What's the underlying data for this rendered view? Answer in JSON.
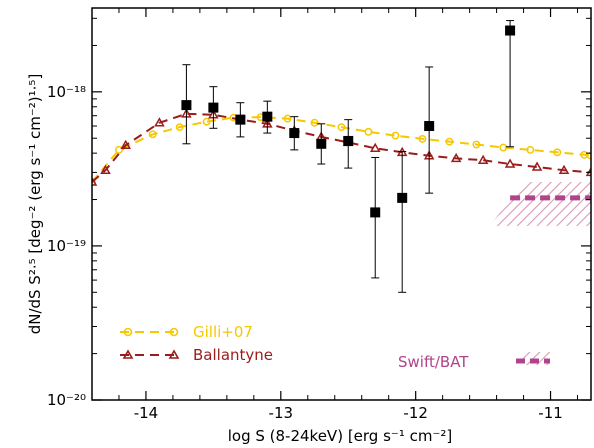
{
  "chart_data": {
    "type": "line",
    "xlabel": "log S (8-24keV) [erg s⁻¹ cm⁻²]",
    "ylabel": "dN/dS S²·⁵ [deg⁻² (erg s⁻¹ cm⁻²)¹·⁵]",
    "xlim": [
      -14.4,
      -10.7
    ],
    "ylim": [
      1e-20,
      3.5e-18
    ],
    "yscale": "log",
    "x_ticks": [
      {
        "value": -14,
        "label": "-14"
      },
      {
        "value": -13,
        "label": "-13"
      },
      {
        "value": -12,
        "label": "-12"
      },
      {
        "value": -11,
        "label": "-11"
      }
    ],
    "y_ticks": [
      {
        "value": 1e-20,
        "label": "10⁻²⁰"
      },
      {
        "value": 1e-19,
        "label": "10⁻¹⁹"
      },
      {
        "value": 1e-18,
        "label": "10⁻¹⁸"
      }
    ],
    "series": [
      {
        "name": "Gilli+07",
        "style": "dashed",
        "marker": "circle",
        "color": "#f5c800",
        "x": [
          -14.4,
          -14.2,
          -13.95,
          -13.75,
          -13.55,
          -13.35,
          -13.15,
          -12.95,
          -12.75,
          -12.55,
          -12.35,
          -12.15,
          -11.95,
          -11.75,
          -11.55,
          -11.35,
          -11.15,
          -10.95,
          -10.75,
          -10.7
        ],
        "y": [
          2.6e-19,
          4.2e-19,
          5.3e-19,
          5.9e-19,
          6.4e-19,
          6.8e-19,
          6.85e-19,
          6.7e-19,
          6.3e-19,
          5.9e-19,
          5.5e-19,
          5.2e-19,
          4.95e-19,
          4.75e-19,
          4.55e-19,
          4.35e-19,
          4.2e-19,
          4.05e-19,
          3.9e-19,
          3.85e-19
        ]
      },
      {
        "name": "Ballantyne",
        "style": "dashed",
        "marker": "triangle",
        "color": "#9a1c1c",
        "x": [
          -14.4,
          -14.3,
          -14.15,
          -13.9,
          -13.7,
          -13.5,
          -13.3,
          -13.1,
          -12.9,
          -12.7,
          -12.5,
          -12.3,
          -12.1,
          -11.9,
          -11.7,
          -11.5,
          -11.3,
          -11.1,
          -10.9,
          -10.7
        ],
        "y": [
          2.6e-19,
          3.1e-19,
          4.5e-19,
          6.3e-19,
          7.2e-19,
          7.1e-19,
          6.6e-19,
          6.2e-19,
          5.6e-19,
          5.1e-19,
          4.7e-19,
          4.3e-19,
          4.05e-19,
          3.85e-19,
          3.7e-19,
          3.6e-19,
          3.4e-19,
          3.25e-19,
          3.1e-19,
          3e-19
        ]
      }
    ],
    "data_points": [
      {
        "x": -13.7,
        "y": 8.2e-19,
        "ylo": 4.6e-19,
        "yhi": 1.5e-18
      },
      {
        "x": -13.5,
        "y": 7.9e-19,
        "ylo": 5.8e-19,
        "yhi": 1.08e-18
      },
      {
        "x": -13.3,
        "y": 6.6e-19,
        "ylo": 5.1e-19,
        "yhi": 8.5e-19
      },
      {
        "x": -13.1,
        "y": 6.9e-19,
        "ylo": 5.4e-19,
        "yhi": 8.7e-19
      },
      {
        "x": -12.9,
        "y": 5.4e-19,
        "ylo": 4.2e-19,
        "yhi": 6.9e-19
      },
      {
        "x": -12.7,
        "y": 4.6e-19,
        "ylo": 3.4e-19,
        "yhi": 6.2e-19
      },
      {
        "x": -12.5,
        "y": 4.8e-19,
        "ylo": 3.2e-19,
        "yhi": 6.6e-19
      },
      {
        "x": -12.3,
        "y": 1.65e-19,
        "ylo": 6.2e-20,
        "yhi": 3.75e-19
      },
      {
        "x": -12.1,
        "y": 2.05e-19,
        "ylo": 5e-20,
        "yhi": 4.1e-19
      },
      {
        "x": -11.9,
        "y": 6e-19,
        "ylo": 2.2e-19,
        "yhi": 1.45e-18
      },
      {
        "x": -11.3,
        "y": 2.5e-18,
        "ylo": 4.4e-19,
        "yhi": 2.9e-18
      }
    ],
    "swift_bat": {
      "name": "Swift/BAT",
      "color": "#b0448a",
      "hatch_color": "#d79ab6",
      "x_range": [
        -11.45,
        -10.7
      ],
      "y_center": 2.05e-19,
      "y_band_lower_left": 1.35e-19,
      "y_band_top": 2.6e-19,
      "y_band_bottom": 1.35e-19
    },
    "legend_placement": "bottom-left",
    "swift_legend_placement": "bottom-right"
  }
}
